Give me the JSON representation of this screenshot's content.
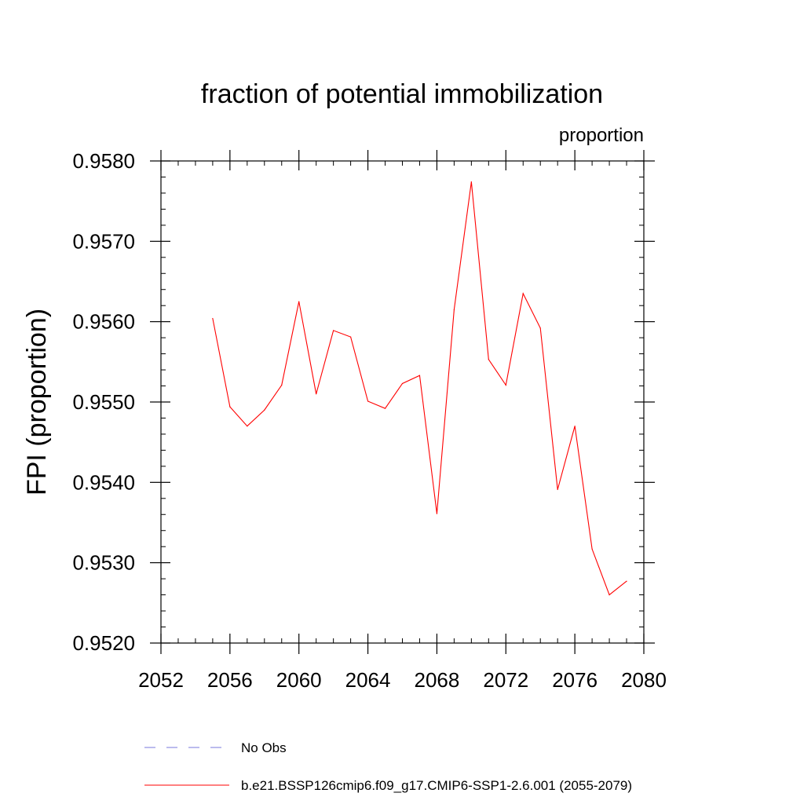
{
  "chart_data": {
    "type": "line",
    "title": "fraction of potential immobilization",
    "subtitle_right": "proportion",
    "xlabel": "",
    "ylabel": "FPI  (proportion)",
    "xlim": [
      2052,
      2080
    ],
    "ylim": [
      0.952,
      0.958
    ],
    "xticks": [
      2052,
      2056,
      2060,
      2064,
      2068,
      2072,
      2076,
      2080
    ],
    "yticks": [
      "0.9520",
      "0.9530",
      "0.9540",
      "0.9550",
      "0.9560",
      "0.9570",
      "0.9580"
    ],
    "grid": false,
    "legend_placement": "bottom",
    "series": [
      {
        "name": "b.e21.BSSP126cmip6.f09_g17.CMIP6-SSP1-2.6.001 (2055-2079)",
        "color": "#ff0000",
        "style": "solid",
        "x": [
          2055,
          2056,
          2057,
          2058,
          2059,
          2060,
          2061,
          2062,
          2063,
          2064,
          2065,
          2066,
          2067,
          2068,
          2069,
          2070,
          2071,
          2072,
          2073,
          2074,
          2075,
          2076,
          2077,
          2078,
          2079
        ],
        "y": [
          0.95604,
          0.95494,
          0.9547,
          0.9549,
          0.95521,
          0.95625,
          0.9551,
          0.95589,
          0.95581,
          0.95501,
          0.95492,
          0.95523,
          0.95533,
          0.95361,
          0.95615,
          0.95774,
          0.95553,
          0.95521,
          0.95635,
          0.95592,
          0.95391,
          0.9547,
          0.95317,
          0.9526,
          0.95277
        ]
      }
    ],
    "legend": [
      {
        "label": "No Obs",
        "color": "#7777dd",
        "style": "dashed"
      },
      {
        "label": "b.e21.BSSP126cmip6.f09_g17.CMIP6-SSP1-2.6.001 (2055-2079)",
        "color": "#ff0000",
        "style": "solid"
      }
    ]
  }
}
